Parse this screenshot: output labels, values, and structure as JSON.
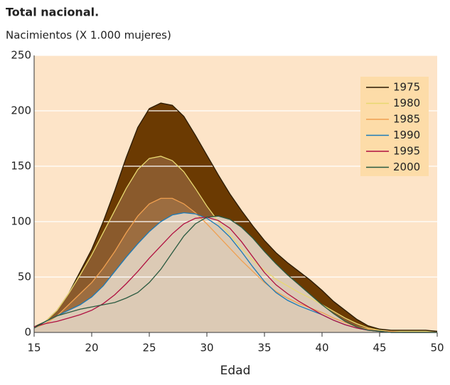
{
  "chart_data": {
    "type": "area-line",
    "title": "Total nacional.",
    "subtitle": "Nacimientos (X 1.000 mujeres)",
    "xlabel": "Edad",
    "x": [
      15,
      16,
      17,
      18,
      19,
      20,
      21,
      22,
      23,
      24,
      25,
      26,
      27,
      28,
      29,
      30,
      31,
      32,
      33,
      34,
      35,
      36,
      37,
      38,
      39,
      40,
      41,
      42,
      43,
      44,
      45,
      46,
      47,
      48,
      49,
      50
    ],
    "xlim": [
      15,
      50
    ],
    "xticks": [
      15,
      20,
      25,
      30,
      35,
      40,
      45,
      50
    ],
    "ylim": [
      0,
      250
    ],
    "yticks": [
      0,
      50,
      100,
      150,
      200,
      250
    ],
    "grid": true,
    "legend": "upper right",
    "background": "#fde4c8",
    "series": [
      {
        "name": "1975",
        "color": "#2a1a00",
        "fill": "#6b3a02",
        "values": [
          5,
          10,
          20,
          35,
          55,
          75,
          100,
          128,
          158,
          185,
          202,
          207,
          205,
          195,
          178,
          160,
          142,
          125,
          110,
          96,
          83,
          72,
          63,
          55,
          47,
          38,
          28,
          20,
          12,
          6,
          3,
          2,
          2,
          2,
          2,
          1
        ]
      },
      {
        "name": "1980",
        "color": "#e8d870",
        "fill": "#8a5a2c",
        "values": [
          4,
          10,
          20,
          35,
          52,
          70,
          90,
          110,
          130,
          147,
          157,
          159,
          155,
          145,
          130,
          114,
          100,
          88,
          76,
          65,
          56,
          48,
          42,
          36,
          31,
          25,
          19,
          13,
          8,
          4,
          2,
          1,
          1,
          1,
          1,
          0
        ]
      },
      {
        "name": "1985",
        "color": "#f0a050",
        "fill": "#9c6d40",
        "values": [
          4,
          8,
          15,
          25,
          35,
          45,
          58,
          73,
          90,
          105,
          116,
          121,
          121,
          116,
          108,
          98,
          87,
          76,
          65,
          55,
          45,
          37,
          31,
          26,
          22,
          18,
          13,
          9,
          5,
          3,
          1,
          1,
          0,
          0,
          0,
          0
        ]
      },
      {
        "name": "1990",
        "color": "#1a7ab8",
        "fill": "#dccab5",
        "values": [
          4,
          10,
          15,
          20,
          25,
          32,
          42,
          55,
          68,
          80,
          91,
          100,
          106,
          108,
          107,
          103,
          96,
          86,
          73,
          59,
          46,
          36,
          29,
          24,
          20,
          16,
          11,
          7,
          4,
          2,
          1,
          0,
          0,
          0,
          0,
          0
        ]
      },
      {
        "name": "1995",
        "color": "#b01040",
        "fill": "#dccab5",
        "values": [
          5,
          8,
          10,
          13,
          16,
          20,
          26,
          34,
          44,
          55,
          67,
          78,
          89,
          98,
          103,
          104,
          101,
          94,
          82,
          68,
          54,
          43,
          35,
          28,
          22,
          16,
          11,
          7,
          4,
          2,
          1,
          0,
          0,
          0,
          0,
          0
        ]
      },
      {
        "name": "2000",
        "color": "#2a5a40",
        "fill": "#dccab5",
        "values": [
          4,
          10,
          15,
          18,
          21,
          23,
          25,
          27,
          31,
          36,
          45,
          57,
          72,
          87,
          98,
          104,
          105,
          102,
          95,
          85,
          73,
          62,
          52,
          43,
          34,
          25,
          17,
          10,
          5,
          2,
          1,
          0,
          0,
          0,
          0,
          0
        ]
      }
    ]
  }
}
